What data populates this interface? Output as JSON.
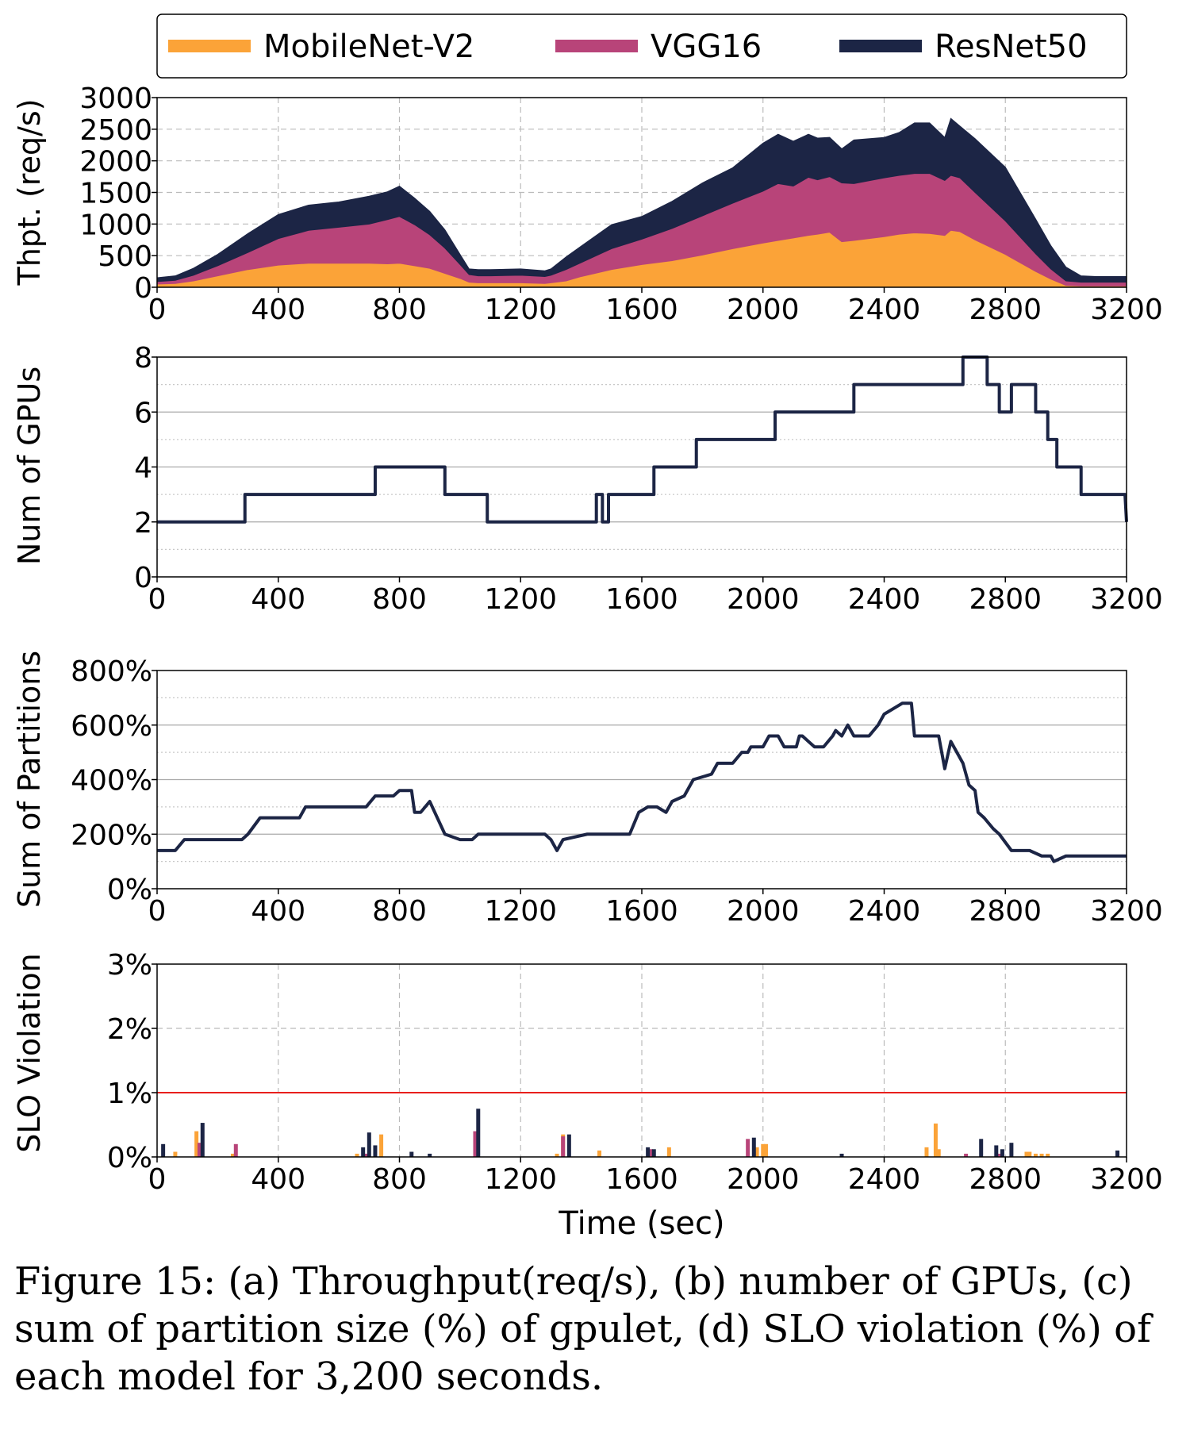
{
  "chart_data": [
    {
      "type": "area",
      "ylabel": "Thpt. (req/s)",
      "xlim": [
        0,
        3200
      ],
      "ylim": [
        0,
        3000
      ],
      "xticks": [
        0,
        400,
        800,
        1200,
        1600,
        2000,
        2400,
        2800,
        3200
      ],
      "yticks": [
        0,
        500,
        1000,
        1500,
        2000,
        2500,
        3000
      ],
      "legend_position": "top",
      "stacked": true,
      "x": [
        0,
        60,
        120,
        200,
        300,
        400,
        500,
        600,
        700,
        760,
        800,
        850,
        900,
        950,
        1000,
        1030,
        1060,
        1100,
        1200,
        1280,
        1300,
        1350,
        1400,
        1500,
        1600,
        1700,
        1800,
        1900,
        2000,
        2050,
        2100,
        2150,
        2180,
        2220,
        2260,
        2300,
        2400,
        2450,
        2500,
        2550,
        2600,
        2620,
        2650,
        2700,
        2800,
        2900,
        2950,
        3000,
        3050,
        3100,
        3200
      ],
      "series": [
        {
          "name": "MobileNet-V2",
          "color": "#fba338",
          "values": [
            50,
            60,
            100,
            180,
            280,
            350,
            380,
            380,
            380,
            370,
            380,
            340,
            300,
            220,
            140,
            80,
            70,
            70,
            70,
            60,
            70,
            100,
            170,
            280,
            360,
            420,
            510,
            610,
            700,
            740,
            780,
            820,
            840,
            870,
            720,
            740,
            800,
            840,
            860,
            850,
            820,
            900,
            880,
            750,
            520,
            250,
            130,
            30,
            20,
            20,
            20
          ]
        },
        {
          "name": "VGG16",
          "color": "#b84479",
          "values": [
            40,
            50,
            90,
            160,
            270,
            420,
            520,
            570,
            620,
            700,
            740,
            650,
            530,
            400,
            220,
            120,
            110,
            110,
            120,
            110,
            120,
            180,
            220,
            330,
            400,
            510,
            620,
            720,
            820,
            900,
            820,
            920,
            860,
            880,
            930,
            900,
            930,
            930,
            940,
            950,
            870,
            870,
            850,
            750,
            530,
            280,
            160,
            70,
            60,
            60,
            60
          ]
        },
        {
          "name": "ResNet50",
          "color": "#1c2545",
          "values": [
            60,
            70,
            110,
            180,
            300,
            380,
            400,
            400,
            440,
            440,
            480,
            420,
            370,
            290,
            160,
            90,
            100,
            100,
            100,
            90,
            100,
            200,
            260,
            380,
            360,
            430,
            520,
            560,
            760,
            780,
            710,
            680,
            660,
            620,
            540,
            690,
            640,
            680,
            800,
            800,
            680,
            900,
            820,
            850,
            850,
            550,
            370,
            220,
            100,
            90,
            90
          ]
        }
      ]
    },
    {
      "type": "line",
      "ylabel": "Num of GPUs",
      "xlim": [
        0,
        3200
      ],
      "ylim": [
        0,
        8
      ],
      "xticks": [
        0,
        400,
        800,
        1200,
        1600,
        2000,
        2400,
        2800,
        3200
      ],
      "yticks": [
        0,
        2,
        4,
        6,
        8
      ],
      "color": "#1c2545",
      "x": [
        0,
        290,
        290,
        720,
        720,
        950,
        950,
        1090,
        1090,
        1450,
        1450,
        1470,
        1470,
        1490,
        1490,
        1640,
        1640,
        1780,
        1780,
        2040,
        2040,
        2300,
        2300,
        2660,
        2660,
        2740,
        2740,
        2780,
        2780,
        2820,
        2820,
        2900,
        2900,
        2940,
        2940,
        2970,
        2970,
        3050,
        3050,
        3195,
        3200
      ],
      "values": [
        2,
        2,
        3,
        3,
        4,
        4,
        3,
        3,
        2,
        2,
        3,
        3,
        2,
        2,
        3,
        3,
        4,
        4,
        5,
        5,
        6,
        6,
        7,
        7,
        8,
        8,
        7,
        7,
        6,
        6,
        7,
        7,
        6,
        6,
        5,
        5,
        4,
        4,
        3,
        3,
        2
      ]
    },
    {
      "type": "line",
      "ylabel": "Sum of Partitions",
      "xlim": [
        0,
        3200
      ],
      "ylim": [
        0,
        800
      ],
      "xticks": [
        0,
        400,
        800,
        1200,
        1600,
        2000,
        2400,
        2800,
        3200
      ],
      "yticks": [
        0,
        200,
        400,
        600,
        800
      ],
      "ytick_labels": [
        "0%",
        "200%",
        "400%",
        "600%",
        "800%"
      ],
      "color": "#1c2545",
      "x": [
        0,
        60,
        90,
        280,
        300,
        340,
        470,
        490,
        690,
        720,
        780,
        800,
        840,
        850,
        870,
        900,
        950,
        1000,
        1040,
        1060,
        1200,
        1260,
        1270,
        1280,
        1300,
        1320,
        1340,
        1420,
        1450,
        1500,
        1560,
        1590,
        1620,
        1650,
        1680,
        1700,
        1740,
        1770,
        1830,
        1850,
        1900,
        1930,
        1950,
        1960,
        2000,
        2020,
        2050,
        2070,
        2110,
        2120,
        2130,
        2170,
        2200,
        2230,
        2240,
        2260,
        2280,
        2300,
        2350,
        2380,
        2400,
        2460,
        2490,
        2500,
        2520,
        2560,
        2580,
        2600,
        2620,
        2640,
        2660,
        2680,
        2700,
        2710,
        2730,
        2760,
        2780,
        2820,
        2850,
        2880,
        2920,
        2950,
        2960,
        3000,
        3200
      ],
      "values": [
        140,
        140,
        180,
        180,
        200,
        260,
        260,
        300,
        300,
        340,
        340,
        360,
        360,
        280,
        280,
        320,
        200,
        180,
        180,
        200,
        200,
        200,
        200,
        200,
        180,
        140,
        180,
        200,
        200,
        200,
        200,
        280,
        300,
        300,
        280,
        320,
        340,
        400,
        420,
        460,
        460,
        500,
        500,
        520,
        520,
        560,
        560,
        520,
        520,
        560,
        560,
        520,
        520,
        560,
        580,
        560,
        600,
        560,
        560,
        600,
        640,
        680,
        680,
        560,
        560,
        560,
        560,
        440,
        540,
        500,
        460,
        380,
        360,
        280,
        260,
        220,
        200,
        140,
        140,
        140,
        120,
        120,
        100,
        120,
        120
      ]
    },
    {
      "type": "bar",
      "ylabel": "SLO Violation",
      "xlabel": "Time (sec)",
      "xlim": [
        0,
        3200
      ],
      "ylim": [
        0,
        3
      ],
      "xticks": [
        0,
        400,
        800,
        1200,
        1600,
        2000,
        2400,
        2800,
        3200
      ],
      "yticks": [
        0,
        1,
        2,
        3
      ],
      "ytick_labels": [
        "0%",
        "1%",
        "2%",
        "3%"
      ],
      "threshold": {
        "value": 1,
        "color": "#e8201c"
      },
      "series": [
        {
          "name": "MobileNet-V2",
          "color": "#fba338",
          "x": [
            60,
            130,
            140,
            250,
            660,
            740,
            1320,
            1340,
            1460,
            1690,
            1980,
            2000,
            2010,
            2540,
            2570,
            2580,
            2870,
            2880,
            2900,
            2920,
            2940
          ],
          "values": [
            0.08,
            0.4,
            0.2,
            0.05,
            0.05,
            0.35,
            0.05,
            0.35,
            0.1,
            0.15,
            0.15,
            0.2,
            0.2,
            0.15,
            0.52,
            0.12,
            0.08,
            0.08,
            0.05,
            0.05,
            0.05
          ]
        },
        {
          "name": "VGG16",
          "color": "#b84479",
          "x": [
            140,
            260,
            690,
            1050,
            1340,
            1630,
            1950,
            2670,
            2780
          ],
          "values": [
            0.22,
            0.2,
            0.05,
            0.4,
            0.32,
            0.12,
            0.28,
            0.05,
            0.05
          ]
        },
        {
          "name": "ResNet50",
          "color": "#1c2545",
          "x": [
            20,
            150,
            680,
            700,
            720,
            840,
            900,
            1060,
            1360,
            1620,
            1640,
            1970,
            2260,
            2720,
            2770,
            2790,
            2820,
            3170
          ],
          "values": [
            0.2,
            0.53,
            0.15,
            0.38,
            0.18,
            0.08,
            0.05,
            0.75,
            0.35,
            0.15,
            0.12,
            0.3,
            0.05,
            0.28,
            0.18,
            0.12,
            0.22,
            0.1
          ]
        }
      ]
    }
  ],
  "caption": "Figure 15: (a) Throughput(req/s), (b) number of GPUs, (c) sum of partition size (%) of gpulet, (d) SLO violation (%) of each model for 3,200 seconds."
}
